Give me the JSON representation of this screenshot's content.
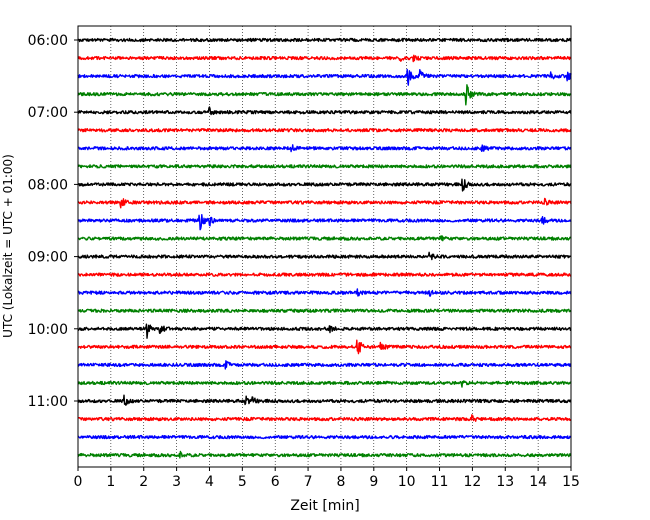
{
  "chart_data": {
    "type": "line",
    "title": "",
    "xlabel": "Zeit  [min]",
    "ylabel": "UTC (Lokalzeit = UTC + 01:00)",
    "xlim": [
      0,
      15
    ],
    "x_ticks": [
      "0",
      "1",
      "2",
      "3",
      "4",
      "5",
      "6",
      "7",
      "8",
      "9",
      "10",
      "11",
      "12",
      "13",
      "14",
      "15"
    ],
    "y_tick_labels": [
      "06:00",
      "07:00",
      "08:00",
      "09:00",
      "10:00",
      "11:00"
    ],
    "start_time": "06:00",
    "trace_interval_min": 15,
    "colors": [
      "#000000",
      "#ff0000",
      "#0000ff",
      "#008000"
    ],
    "grid": "vertical dotted",
    "legend": "none",
    "traces": [
      {
        "time": "06:00",
        "color": "#000000",
        "events": []
      },
      {
        "time": "06:15",
        "color": "#ff0000",
        "events": [
          [
            10.2,
            3
          ],
          [
            9.8,
            2
          ]
        ]
      },
      {
        "time": "06:30",
        "color": "#0000ff",
        "events": [
          [
            10.0,
            14
          ],
          [
            10.4,
            5
          ],
          [
            14.4,
            5
          ],
          [
            14.9,
            4
          ]
        ]
      },
      {
        "time": "06:45",
        "color": "#008000",
        "events": [
          [
            11.8,
            12
          ]
        ]
      },
      {
        "time": "07:00",
        "color": "#000000",
        "events": [
          [
            4.0,
            4
          ]
        ]
      },
      {
        "time": "07:15",
        "color": "#ff0000",
        "events": []
      },
      {
        "time": "07:30",
        "color": "#0000ff",
        "events": [
          [
            6.5,
            4
          ],
          [
            12.3,
            3
          ]
        ]
      },
      {
        "time": "07:45",
        "color": "#008000",
        "events": []
      },
      {
        "time": "08:00",
        "color": "#000000",
        "events": [
          [
            11.7,
            7
          ]
        ]
      },
      {
        "time": "08:15",
        "color": "#ff0000",
        "events": [
          [
            1.3,
            6
          ],
          [
            14.2,
            3
          ]
        ]
      },
      {
        "time": "08:30",
        "color": "#0000ff",
        "events": [
          [
            3.7,
            10
          ],
          [
            4.0,
            5
          ],
          [
            14.1,
            5
          ]
        ]
      },
      {
        "time": "08:45",
        "color": "#008000",
        "events": [
          [
            11.0,
            3
          ]
        ]
      },
      {
        "time": "09:00",
        "color": "#000000",
        "events": [
          [
            10.7,
            3
          ]
        ]
      },
      {
        "time": "09:15",
        "color": "#ff0000",
        "events": []
      },
      {
        "time": "09:30",
        "color": "#0000ff",
        "events": [
          [
            8.5,
            3
          ],
          [
            10.7,
            3
          ]
        ]
      },
      {
        "time": "09:45",
        "color": "#008000",
        "events": []
      },
      {
        "time": "10:00",
        "color": "#000000",
        "events": [
          [
            2.1,
            9
          ],
          [
            2.5,
            5
          ],
          [
            7.6,
            5
          ]
        ]
      },
      {
        "time": "10:15",
        "color": "#ff0000",
        "events": [
          [
            8.5,
            10
          ],
          [
            9.2,
            4
          ]
        ]
      },
      {
        "time": "10:30",
        "color": "#0000ff",
        "events": [
          [
            4.5,
            3
          ]
        ]
      },
      {
        "time": "10:45",
        "color": "#008000",
        "events": [
          [
            11.7,
            3
          ]
        ]
      },
      {
        "time": "11:00",
        "color": "#000000",
        "events": [
          [
            1.4,
            5
          ],
          [
            5.1,
            4
          ],
          [
            5.3,
            3
          ]
        ]
      },
      {
        "time": "11:15",
        "color": "#ff0000",
        "events": [
          [
            12.0,
            3
          ]
        ]
      },
      {
        "time": "11:30",
        "color": "#0000ff",
        "events": []
      },
      {
        "time": "11:45",
        "color": "#008000",
        "events": [
          [
            3.1,
            3
          ]
        ]
      }
    ]
  }
}
